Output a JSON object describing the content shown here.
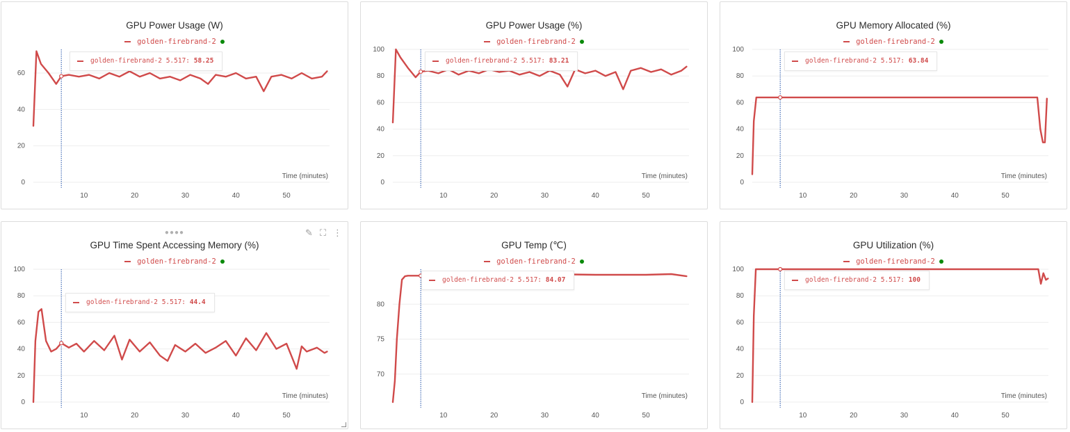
{
  "x_axis_title": "Time (minutes)",
  "run_name": "golden-firebrand-2",
  "hover_step": "5.517",
  "colors": {
    "series": "#d04a4a",
    "run_dot": "#0a8a0a",
    "hover_line": "#1d4fa8"
  },
  "toolbar_icons": [
    "pencil-icon",
    "fullscreen-icon",
    "more-vert-icon"
  ],
  "panels": [
    {
      "title": "GPU Power Usage (W)",
      "hover_value": "58.25"
    },
    {
      "title": "GPU Power Usage (%)",
      "hover_value": "83.21"
    },
    {
      "title": "GPU Memory Allocated (%)",
      "hover_value": "63.84"
    },
    {
      "title": "GPU Time Spent Accessing Memory (%)",
      "hover_value": "44.4"
    },
    {
      "title": "GPU Temp (℃)",
      "hover_value": "84.07"
    },
    {
      "title": "GPU Utilization (%)",
      "hover_value": "100"
    }
  ],
  "chart_data": [
    {
      "type": "line",
      "title": "GPU Power Usage (W)",
      "xlabel": "Time (minutes)",
      "x_ticks": [
        10,
        20,
        30,
        40,
        50
      ],
      "y_ticks": [
        0,
        20,
        40,
        60
      ],
      "xlim": [
        0,
        58.5
      ],
      "ylim": [
        0,
        73
      ],
      "series": [
        {
          "name": "golden-firebrand-2",
          "x": [
            0,
            0.6,
            1.5,
            3,
            4.5,
            5.5,
            7,
            9,
            11,
            13,
            15,
            17,
            19,
            21,
            23,
            25,
            27,
            29,
            31,
            33,
            34.5,
            36,
            38,
            40,
            42,
            44,
            45.5,
            47,
            49,
            51,
            53,
            55,
            57,
            58
          ],
          "y": [
            31,
            72,
            65,
            60,
            54,
            58.25,
            59,
            58,
            59,
            57,
            60,
            58,
            61,
            58,
            60,
            57,
            58,
            56,
            59,
            57,
            54,
            59,
            58,
            60,
            57,
            58,
            50,
            58,
            59,
            57,
            60,
            57,
            58,
            61
          ]
        }
      ]
    },
    {
      "type": "line",
      "title": "GPU Power Usage (%)",
      "xlabel": "Time (minutes)",
      "x_ticks": [
        10,
        20,
        30,
        40,
        50
      ],
      "y_ticks": [
        0,
        20,
        40,
        60,
        80,
        100
      ],
      "xlim": [
        0,
        58.5
      ],
      "ylim": [
        0,
        100
      ],
      "series": [
        {
          "name": "golden-firebrand-2",
          "x": [
            0,
            0.6,
            1.5,
            3,
            4.5,
            5.5,
            7,
            9,
            11,
            13,
            15,
            17,
            19,
            21,
            23,
            25,
            27,
            29,
            31,
            33,
            34.5,
            36,
            38,
            40,
            42,
            44,
            45.5,
            47,
            49,
            51,
            53,
            55,
            57,
            58
          ],
          "y": [
            45,
            100,
            94,
            86,
            79,
            83.21,
            84,
            82,
            85,
            81,
            84,
            82,
            85,
            83,
            84,
            81,
            83,
            80,
            84,
            81,
            72,
            85,
            82,
            84,
            80,
            83,
            70,
            84,
            86,
            83,
            85,
            81,
            84,
            87
          ]
        }
      ]
    },
    {
      "type": "line",
      "title": "GPU Memory Allocated (%)",
      "xlabel": "Time (minutes)",
      "x_ticks": [
        10,
        20,
        30,
        40,
        50
      ],
      "y_ticks": [
        0,
        20,
        40,
        60,
        80,
        100
      ],
      "xlim": [
        0,
        58.5
      ],
      "ylim": [
        0,
        100
      ],
      "series": [
        {
          "name": "golden-firebrand-2",
          "x": [
            0,
            0.3,
            0.8,
            2,
            5.517,
            20,
            40,
            56.3,
            56.9,
            57.4,
            57.8,
            58.2
          ],
          "y": [
            6,
            46,
            63.84,
            63.84,
            63.84,
            63.84,
            63.84,
            63.84,
            40,
            30,
            30,
            63
          ]
        }
      ]
    },
    {
      "type": "line",
      "title": "GPU Time Spent Accessing Memory (%)",
      "xlabel": "Time (minutes)",
      "x_ticks": [
        10,
        20,
        30,
        40,
        50
      ],
      "y_ticks": [
        0,
        20,
        40,
        60,
        80,
        100
      ],
      "xlim": [
        0,
        58.5
      ],
      "ylim": [
        0,
        100
      ],
      "series": [
        {
          "name": "golden-firebrand-2",
          "x": [
            0,
            0.4,
            1,
            1.6,
            2.5,
            3.5,
            4.5,
            5.517,
            7,
            8.5,
            10,
            12,
            14,
            16,
            17.5,
            19,
            21,
            23,
            25,
            26.5,
            28,
            30,
            32,
            34,
            36,
            38,
            40,
            42,
            44,
            46,
            48,
            50,
            52,
            53,
            54,
            56,
            57.5,
            58
          ],
          "y": [
            0,
            46,
            68,
            70,
            46,
            38,
            40,
            44.4,
            41,
            44,
            38,
            46,
            39,
            50,
            32,
            47,
            38,
            45,
            35,
            31,
            43,
            38,
            44,
            37,
            41,
            46,
            35,
            48,
            39,
            52,
            40,
            44,
            25,
            42,
            38,
            41,
            37,
            38
          ]
        }
      ]
    },
    {
      "type": "line",
      "title": "GPU Temp (℃)",
      "xlabel": "Time (minutes)",
      "x_ticks": [
        10,
        20,
        30,
        40,
        50
      ],
      "y_ticks": [
        70,
        75,
        80
      ],
      "xlim": [
        0,
        58.5
      ],
      "ylim": [
        66,
        85
      ],
      "series": [
        {
          "name": "golden-firebrand-2",
          "x": [
            0,
            0.4,
            0.8,
            1.3,
            1.8,
            2.4,
            3,
            5.517,
            10,
            20,
            30,
            40,
            50,
            55,
            58
          ],
          "y": [
            66,
            69,
            75,
            80,
            83.5,
            84,
            84.07,
            84.07,
            84.1,
            84.2,
            84.3,
            84.2,
            84.2,
            84.3,
            84
          ]
        }
      ]
    },
    {
      "type": "line",
      "title": "GPU Utilization (%)",
      "xlabel": "Time (minutes)",
      "x_ticks": [
        10,
        20,
        30,
        40,
        50
      ],
      "y_ticks": [
        0,
        20,
        40,
        60,
        80,
        100
      ],
      "xlim": [
        0,
        58.5
      ],
      "ylim": [
        0,
        100
      ],
      "series": [
        {
          "name": "golden-firebrand-2",
          "x": [
            0,
            0.3,
            0.7,
            5.517,
            20,
            40,
            56.5,
            57,
            57.5,
            58,
            58.4
          ],
          "y": [
            0,
            65,
            100,
            100,
            100,
            100,
            100,
            89,
            97,
            92,
            93
          ]
        }
      ]
    }
  ]
}
